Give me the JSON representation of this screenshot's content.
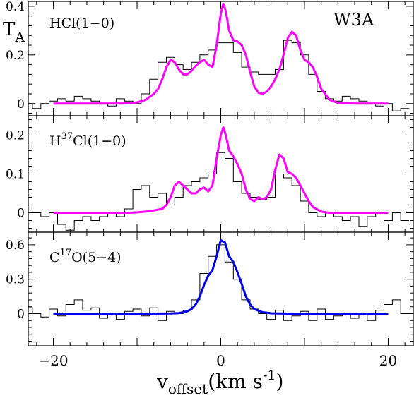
{
  "chart_data": {
    "type": "line",
    "source_label": "W3A",
    "yaxis_title": {
      "main": "T",
      "sub": "A"
    },
    "xlabel": {
      "main": "v",
      "sub": "offset",
      "rest": "(km s",
      "sup": "-1",
      "close": ")"
    },
    "xlim": [
      -23,
      23
    ],
    "xticks": [
      -20,
      0,
      20
    ],
    "xtick_labels": [
      "−20",
      "0",
      "20"
    ],
    "fit_colors": {
      "magenta": "#ff00ff",
      "blue": "#0000ee"
    },
    "panels": [
      {
        "label_main": "HCl(1−0)",
        "label_pre": "",
        "label_sup": "",
        "label_post": "",
        "ylim": [
          -0.05,
          0.42
        ],
        "yticks": [
          0,
          0.2,
          0.4
        ],
        "ytick_labels": [
          "0",
          "0.2",
          "0.4"
        ],
        "fit_color": "#ff00ff",
        "observed": {
          "x": [
            -23,
            -22,
            -21,
            -20,
            -19,
            -18,
            -17,
            -16,
            -15,
            -14,
            -13,
            -12,
            -11,
            -10,
            -9,
            -8,
            -7,
            -6,
            -5,
            -4,
            -3,
            -2,
            -1,
            0,
            1,
            2,
            3,
            4,
            5,
            6,
            7,
            8,
            9,
            10,
            11,
            12,
            13,
            14,
            15,
            16,
            17,
            18,
            19,
            20,
            21,
            22
          ],
          "y": [
            0.0,
            -0.02,
            0.0,
            0.01,
            0.02,
            0.01,
            0.03,
            0.02,
            0.01,
            0.0,
            -0.01,
            0.02,
            0.01,
            0.0,
            0.04,
            0.1,
            0.17,
            0.19,
            0.16,
            0.14,
            0.17,
            0.2,
            0.22,
            0.25,
            0.25,
            0.21,
            0.15,
            0.13,
            0.12,
            0.12,
            0.14,
            0.26,
            0.25,
            0.2,
            0.12,
            0.05,
            0.02,
            0.01,
            0.03,
            0.02,
            0.01,
            0.0,
            -0.01,
            0.0,
            -0.03,
            -0.02
          ]
        },
        "fit": {
          "x": [
            -20,
            -18,
            -16,
            -14,
            -12,
            -11,
            -10,
            -9,
            -8,
            -7.5,
            -7,
            -6.5,
            -6,
            -5.5,
            -5,
            -4.5,
            -4,
            -3.5,
            -3,
            -2.5,
            -2,
            -1.5,
            -1,
            -0.5,
            0,
            0.3,
            0.6,
            1,
            1.5,
            2,
            2.5,
            3,
            3.5,
            4,
            4.5,
            5,
            5.5,
            6,
            6.5,
            7,
            7.5,
            8,
            8.5,
            9,
            9.5,
            10,
            10.5,
            11,
            11.5,
            12,
            13,
            14,
            16,
            18,
            20
          ],
          "y": [
            0.0,
            0.0,
            0.0,
            0.0,
            0.0,
            0.001,
            0.005,
            0.015,
            0.04,
            0.06,
            0.1,
            0.15,
            0.18,
            0.17,
            0.14,
            0.12,
            0.12,
            0.135,
            0.155,
            0.17,
            0.18,
            0.16,
            0.15,
            0.24,
            0.37,
            0.41,
            0.38,
            0.3,
            0.26,
            0.255,
            0.24,
            0.2,
            0.13,
            0.07,
            0.045,
            0.04,
            0.05,
            0.07,
            0.1,
            0.14,
            0.2,
            0.27,
            0.295,
            0.28,
            0.22,
            0.18,
            0.17,
            0.15,
            0.11,
            0.06,
            0.015,
            0.003,
            0.0,
            0.0,
            0.0
          ]
        }
      },
      {
        "label_main": "",
        "label_pre": "H",
        "label_sup": "37",
        "label_post": "Cl(1−0)",
        "ylim": [
          -0.05,
          0.25
        ],
        "yticks": [
          0,
          0.1,
          0.2
        ],
        "ytick_labels": [
          "0",
          "0.1",
          "0.2"
        ],
        "fit_color": "#ff00ff",
        "observed": {
          "x": [
            -23,
            -22,
            -21,
            -20,
            -19,
            -18,
            -17,
            -16,
            -15,
            -14,
            -13,
            -12,
            -11,
            -10,
            -9,
            -8,
            -7,
            -6,
            -5,
            -4,
            -3,
            -2,
            -1,
            0,
            1,
            2,
            3,
            4,
            5,
            6,
            7,
            8,
            9,
            10,
            11,
            12,
            13,
            14,
            15,
            16,
            17,
            18,
            19,
            20,
            21,
            22
          ],
          "y": [
            0.0,
            0.0,
            -0.01,
            0.0,
            -0.03,
            -0.045,
            -0.02,
            -0.01,
            -0.02,
            -0.01,
            0.0,
            -0.01,
            0.01,
            0.06,
            0.07,
            0.04,
            0.05,
            0.02,
            0.04,
            0.07,
            0.08,
            0.09,
            0.1,
            0.155,
            0.14,
            0.08,
            0.05,
            0.04,
            0.035,
            0.04,
            0.1,
            0.09,
            0.07,
            0.03,
            0.0,
            -0.01,
            0.0,
            -0.01,
            -0.02,
            -0.01,
            -0.035,
            -0.01,
            0.0,
            -0.02,
            0.0,
            -0.02
          ]
        },
        "fit": {
          "x": [
            -20,
            -18,
            -16,
            -14,
            -12,
            -11,
            -10,
            -9,
            -8,
            -7,
            -6.5,
            -6,
            -5.5,
            -5,
            -4.5,
            -4,
            -3.5,
            -3,
            -2.5,
            -2,
            -1.5,
            -1,
            -0.5,
            0,
            0.3,
            0.6,
            1,
            1.5,
            2,
            2.5,
            3,
            3.5,
            4,
            4.5,
            5,
            5.5,
            6,
            6.5,
            7,
            7.5,
            8,
            8.5,
            9,
            9.5,
            10,
            10.5,
            11,
            12,
            13,
            14,
            16,
            18,
            20
          ],
          "y": [
            0.0,
            0.0,
            0.0,
            0.0,
            0.0,
            0.0,
            0.001,
            0.003,
            0.006,
            0.01,
            0.02,
            0.04,
            0.07,
            0.08,
            0.07,
            0.06,
            0.05,
            0.05,
            0.06,
            0.065,
            0.055,
            0.07,
            0.14,
            0.2,
            0.22,
            0.2,
            0.16,
            0.145,
            0.125,
            0.1,
            0.06,
            0.035,
            0.03,
            0.04,
            0.035,
            0.04,
            0.06,
            0.11,
            0.15,
            0.14,
            0.105,
            0.1,
            0.09,
            0.07,
            0.05,
            0.03,
            0.015,
            0.003,
            0.0,
            0.0,
            0.0,
            0.0,
            0.0
          ]
        }
      },
      {
        "label_main": "",
        "label_pre": "C",
        "label_sup": "17",
        "label_post": "O(5−4)",
        "ylim": [
          -0.28,
          0.71
        ],
        "yticks": [
          0,
          0.3,
          0.6
        ],
        "ytick_labels": [
          "0",
          "0.3",
          "0.6"
        ],
        "fit_color": "#0000ee",
        "observed": {
          "x": [
            -23,
            -22,
            -21,
            -20,
            -19,
            -18,
            -17,
            -16,
            -15,
            -14,
            -13,
            -12,
            -11,
            -10,
            -9,
            -8,
            -7,
            -6,
            -5,
            -4,
            -3,
            -2,
            -1,
            0,
            1,
            2,
            3,
            4,
            5,
            6,
            7,
            8,
            9,
            10,
            11,
            12,
            13,
            14,
            15,
            16,
            17,
            18,
            19,
            20,
            21,
            22
          ],
          "y": [
            0.05,
            0.0,
            -0.03,
            0.04,
            -0.02,
            0.08,
            0.12,
            0.03,
            0.05,
            -0.04,
            0.0,
            -0.05,
            0.02,
            0.04,
            -0.02,
            0.05,
            -0.06,
            0.02,
            0.0,
            0.03,
            0.12,
            0.35,
            0.5,
            0.6,
            0.45,
            0.3,
            0.12,
            0.04,
            0.0,
            -0.05,
            0.03,
            -0.06,
            -0.02,
            0.02,
            -0.06,
            0.04,
            -0.05,
            -0.02,
            0.0,
            -0.04,
            0.0,
            -0.06,
            0.03,
            0.08,
            0.12,
            0.0
          ]
        },
        "fit": {
          "x": [
            -20,
            -15,
            -10,
            -8,
            -6,
            -5,
            -4,
            -3.5,
            -3,
            -2.5,
            -2,
            -1.5,
            -1,
            -0.5,
            0,
            0.5,
            1,
            1.5,
            2,
            2.5,
            3,
            3.5,
            4,
            5,
            6,
            8,
            10,
            15,
            20
          ],
          "y": [
            0.0,
            0.0,
            0.0,
            0.0,
            0.001,
            0.005,
            0.02,
            0.04,
            0.08,
            0.15,
            0.25,
            0.33,
            0.38,
            0.5,
            0.64,
            0.62,
            0.5,
            0.45,
            0.36,
            0.26,
            0.15,
            0.08,
            0.04,
            0.012,
            0.003,
            0.0,
            0.0,
            0.0,
            0.0
          ]
        }
      }
    ]
  }
}
